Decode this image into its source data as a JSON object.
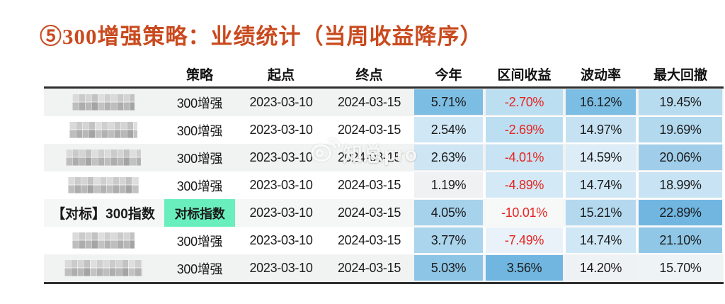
{
  "title": {
    "text": "⑤300增强策略：业绩统计（当周收益降序）",
    "color": "#C94A1E"
  },
  "watermark": {
    "text": "知总pro",
    "icon": "weibo-icon"
  },
  "table": {
    "columns": [
      "策略",
      "起点",
      "终点",
      "今年",
      "区间收益",
      "波动率",
      "最大回撤"
    ],
    "negative_text_color": "#E62420",
    "benchmark_highlight_color": "#69EFBE",
    "zebra_colors": [
      "#F1F2F2",
      "#FFFFFF"
    ],
    "rows": [
      {
        "name": "",
        "masked": true,
        "benchmark": false,
        "bg": "#F1F2F2",
        "strategy": "300增强",
        "start": "2023-03-10",
        "end": "2024-03-15",
        "metrics": [
          {
            "text": "5.71%",
            "bg": "#7CBDE3",
            "neg": false
          },
          {
            "text": "-2.70%",
            "bg": "#BCDEF1",
            "neg": true
          },
          {
            "text": "16.12%",
            "bg": "#7CBDE3",
            "neg": false
          },
          {
            "text": "19.45%",
            "bg": "#B7DBEF",
            "neg": false
          }
        ]
      },
      {
        "name": "",
        "masked": true,
        "benchmark": false,
        "bg": "#FFFFFF",
        "strategy": "300增强",
        "start": "2023-03-10",
        "end": "2024-03-15",
        "metrics": [
          {
            "text": "2.54%",
            "bg": "#D0E7F5",
            "neg": false
          },
          {
            "text": "-2.69%",
            "bg": "#BCDEF1",
            "neg": true
          },
          {
            "text": "14.97%",
            "bg": "#C5E1F2",
            "neg": false
          },
          {
            "text": "19.69%",
            "bg": "#B2D9EE",
            "neg": false
          }
        ]
      },
      {
        "name": "",
        "masked": true,
        "benchmark": false,
        "bg": "#F1F2F2",
        "strategy": "300增强",
        "start": "2023-03-10",
        "end": "2024-03-15",
        "metrics": [
          {
            "text": "2.63%",
            "bg": "#CEE5F4",
            "neg": false
          },
          {
            "text": "-4.01%",
            "bg": "#C8E3F3",
            "neg": true
          },
          {
            "text": "14.59%",
            "bg": "#DCEDF8",
            "neg": false
          },
          {
            "text": "20.06%",
            "bg": "#A0CEEA",
            "neg": false
          }
        ]
      },
      {
        "name": "",
        "masked": true,
        "benchmark": false,
        "bg": "#FFFFFF",
        "strategy": "300增强",
        "start": "2023-03-10",
        "end": "2024-03-15",
        "metrics": [
          {
            "text": "1.19%",
            "bg": "#EFF1F2",
            "neg": false
          },
          {
            "text": "-4.89%",
            "bg": "#D4E9F6",
            "neg": true
          },
          {
            "text": "14.74%",
            "bg": "#D0E7F5",
            "neg": false
          },
          {
            "text": "18.99%",
            "bg": "#C8E3F3",
            "neg": false
          }
        ]
      },
      {
        "name": "【对标】300指数",
        "masked": false,
        "benchmark": true,
        "bg": "#F5F6F6",
        "strategy": "对标指数",
        "start": "2023-03-10",
        "end": "2024-03-15",
        "metrics": [
          {
            "text": "4.05%",
            "bg": "#A6D2EC",
            "neg": false
          },
          {
            "text": "-10.01%",
            "bg": "#F7F8F8",
            "neg": true
          },
          {
            "text": "15.21%",
            "bg": "#B4D9EF",
            "neg": false
          },
          {
            "text": "22.89%",
            "bg": "#70B6E1",
            "neg": false
          }
        ]
      },
      {
        "name": "",
        "masked": true,
        "benchmark": false,
        "bg": "#FFFFFF",
        "strategy": "300增强",
        "start": "2023-03-10",
        "end": "2024-03-15",
        "metrics": [
          {
            "text": "3.77%",
            "bg": "#ABD4ED",
            "neg": false
          },
          {
            "text": "-7.49%",
            "bg": "#E9F2F9",
            "neg": true
          },
          {
            "text": "14.74%",
            "bg": "#D0E7F5",
            "neg": false
          },
          {
            "text": "21.10%",
            "bg": "#90C7E7",
            "neg": false
          }
        ]
      },
      {
        "name": "",
        "masked": true,
        "benchmark": false,
        "bg": "#F1F2F2",
        "strategy": "300增强",
        "start": "2023-03-10",
        "end": "2024-03-15",
        "metrics": [
          {
            "text": "5.03%",
            "bg": "#8DC5E7",
            "neg": false
          },
          {
            "text": "3.56%",
            "bg": "#70B6E1",
            "neg": false
          },
          {
            "text": "14.20%",
            "bg": "#EFF2F4",
            "neg": false
          },
          {
            "text": "15.70%",
            "bg": "#EEF3F6",
            "neg": false
          }
        ]
      }
    ]
  }
}
